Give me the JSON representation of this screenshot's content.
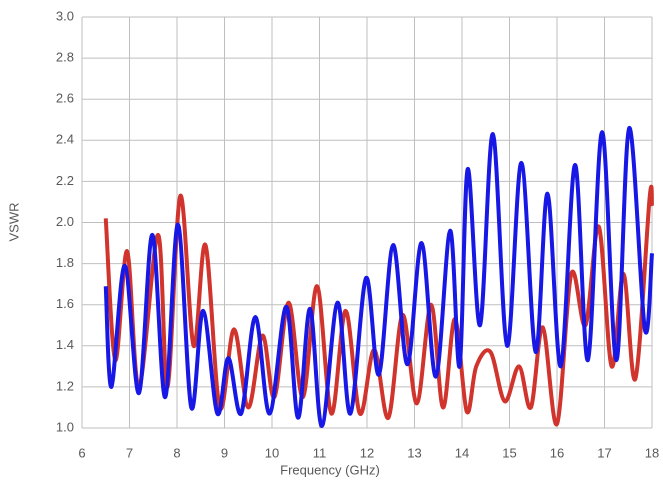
{
  "chart_data": {
    "type": "line",
    "x_label": "Frequency (GHz)",
    "y_label": "VSWR",
    "xlim": [
      6,
      18
    ],
    "xticks": [
      6,
      7,
      8,
      9,
      10,
      11,
      12,
      13,
      14,
      15,
      16,
      17,
      18
    ],
    "ylim": [
      1,
      3
    ],
    "yticks": [
      {
        "value": 1,
        "label": "1.0"
      },
      1.2,
      1.4,
      1.6,
      1.8,
      {
        "value": 2,
        "label": "2.0"
      },
      2.2,
      2.4,
      2.6,
      2.8,
      {
        "value": 3,
        "label": "3.0"
      }
    ],
    "grid": true,
    "series": [
      {
        "color": "#d0342c",
        "x": [
          6.5,
          6.7,
          6.95,
          7.2,
          7.6,
          7.8,
          8.07,
          8.35,
          8.6,
          8.9,
          9.2,
          9.5,
          9.8,
          10.05,
          10.35,
          10.65,
          10.95,
          11.25,
          11.55,
          11.85,
          12.15,
          12.45,
          12.75,
          13.05,
          13.35,
          13.6,
          13.85,
          14.1,
          14.3,
          14.6,
          14.9,
          15.2,
          15.45,
          15.7,
          16.0,
          16.3,
          16.6,
          16.88,
          17.15,
          17.4,
          17.65,
          17.95,
          18.0
        ],
        "values": [
          2.02,
          1.33,
          1.86,
          1.2,
          1.94,
          1.2,
          2.13,
          1.4,
          1.89,
          1.1,
          1.48,
          1.1,
          1.45,
          1.15,
          1.61,
          1.15,
          1.69,
          1.07,
          1.57,
          1.07,
          1.38,
          1.05,
          1.55,
          1.12,
          1.6,
          1.1,
          1.53,
          1.08,
          1.3,
          1.37,
          1.13,
          1.3,
          1.1,
          1.49,
          1.02,
          1.75,
          1.5,
          1.98,
          1.3,
          1.75,
          1.24,
          2.12,
          2.08
        ]
      },
      {
        "color": "#1717e6",
        "x": [
          6.5,
          6.62,
          6.9,
          7.2,
          7.48,
          7.75,
          8.02,
          8.3,
          8.55,
          8.85,
          9.08,
          9.35,
          9.65,
          9.95,
          10.3,
          10.55,
          10.8,
          11.05,
          11.38,
          11.65,
          11.98,
          12.25,
          12.55,
          12.85,
          13.15,
          13.45,
          13.75,
          13.95,
          14.12,
          14.38,
          14.65,
          14.95,
          15.25,
          15.55,
          15.8,
          16.08,
          16.38,
          16.65,
          16.95,
          17.25,
          17.52,
          17.85,
          18.0
        ],
        "values": [
          1.69,
          1.2,
          1.79,
          1.17,
          1.94,
          1.15,
          1.99,
          1.1,
          1.57,
          1.07,
          1.34,
          1.07,
          1.54,
          1.07,
          1.59,
          1.05,
          1.58,
          1.01,
          1.61,
          1.07,
          1.73,
          1.26,
          1.89,
          1.31,
          1.9,
          1.25,
          1.96,
          1.3,
          2.26,
          1.5,
          2.43,
          1.4,
          2.29,
          1.37,
          2.14,
          1.3,
          2.28,
          1.33,
          2.44,
          1.33,
          2.46,
          1.48,
          1.85
        ]
      }
    ]
  }
}
